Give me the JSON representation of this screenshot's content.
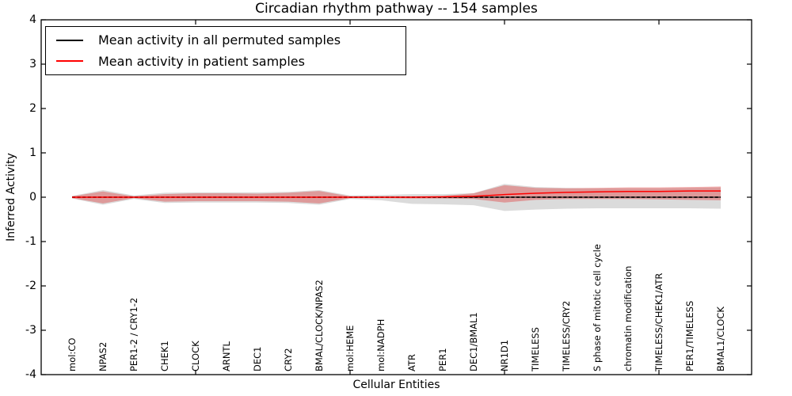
{
  "chart_data": {
    "type": "line",
    "title": "Circadian rhythm pathway -- 154 samples",
    "xlabel": "Cellular Entities",
    "ylabel": "Inferred Activity",
    "ylim": [
      -4,
      4
    ],
    "xlim": [
      0,
      23
    ],
    "grid": false,
    "legend_position": "upper left",
    "y_ticks": [
      {
        "value": 4,
        "label": "4"
      },
      {
        "value": 3,
        "label": "3"
      },
      {
        "value": 2,
        "label": "2"
      },
      {
        "value": 1,
        "label": "1"
      },
      {
        "value": 0,
        "label": "0"
      },
      {
        "value": -1,
        "label": "-1"
      },
      {
        "value": -2,
        "label": "-2"
      },
      {
        "value": -3,
        "label": "-3"
      },
      {
        "value": -4,
        "label": "-4"
      }
    ],
    "x_tick_values": [
      5,
      10,
      15,
      20
    ],
    "categories": [
      "mol:CO",
      "NPAS2",
      "PER1-2 / CRY1-2",
      "CHEK1",
      "CLOCK",
      "ARNTL",
      "DEC1",
      "CRY2",
      "BMAL/CLOCK/NPAS2",
      "mol:HEME",
      "mol:NADPH",
      "ATR",
      "PER1",
      "DEC1/BMAL1",
      "NR1D1",
      "TIMELESS",
      "TIMELESS/CRY2",
      "S phase of mitotic cell cycle",
      "chromatin modification",
      "TIMELESS/CHEK1/ATR",
      "PER1/TIMELESS",
      "BMAL1/CLOCK"
    ],
    "x": [
      1,
      2,
      3,
      4,
      5,
      6,
      7,
      8,
      9,
      10,
      11,
      12,
      13,
      14,
      15,
      16,
      17,
      18,
      19,
      20,
      21,
      22
    ],
    "series": [
      {
        "name": "Mean activity in all permuted samples",
        "color": "#000000",
        "band_color": "#999999",
        "line_style": "solid-with-dashes",
        "mean": [
          0,
          0,
          0,
          0,
          0,
          0,
          0,
          0,
          0,
          0,
          0,
          0,
          0,
          0,
          0,
          0,
          0,
          0,
          0,
          0,
          0,
          0
        ],
        "upper": [
          0.03,
          0.16,
          0.04,
          0.1,
          0.11,
          0.11,
          0.11,
          0.12,
          0.16,
          0.04,
          0.05,
          0.07,
          0.07,
          0.09,
          0.3,
          0.23,
          0.21,
          0.2,
          0.2,
          0.2,
          0.21,
          0.22
        ],
        "lower": [
          -0.03,
          -0.17,
          -0.04,
          -0.13,
          -0.12,
          -0.12,
          -0.12,
          -0.13,
          -0.17,
          -0.04,
          -0.07,
          -0.15,
          -0.16,
          -0.18,
          -0.31,
          -0.28,
          -0.26,
          -0.25,
          -0.25,
          -0.25,
          -0.25,
          -0.26
        ]
      },
      {
        "name": "Mean activity in patient samples",
        "color": "#ff0000",
        "band_color": "#e04040",
        "line_style": "solid",
        "mean": [
          0,
          0,
          0,
          0,
          0,
          0,
          0,
          0,
          0,
          0,
          0,
          0,
          0.01,
          0.02,
          0.06,
          0.09,
          0.11,
          0.12,
          0.13,
          0.13,
          0.14,
          0.14
        ],
        "upper": [
          0.02,
          0.13,
          0.02,
          0.07,
          0.09,
          0.09,
          0.08,
          0.1,
          0.14,
          0.02,
          0.02,
          0.02,
          0.03,
          0.09,
          0.27,
          0.21,
          0.2,
          0.21,
          0.22,
          0.22,
          0.23,
          0.24
        ],
        "lower": [
          -0.02,
          -0.14,
          -0.02,
          -0.1,
          -0.09,
          -0.09,
          -0.09,
          -0.1,
          -0.14,
          -0.02,
          -0.02,
          -0.03,
          -0.03,
          -0.04,
          -0.12,
          -0.06,
          -0.04,
          -0.04,
          -0.04,
          -0.05,
          -0.06,
          -0.07
        ]
      }
    ]
  }
}
